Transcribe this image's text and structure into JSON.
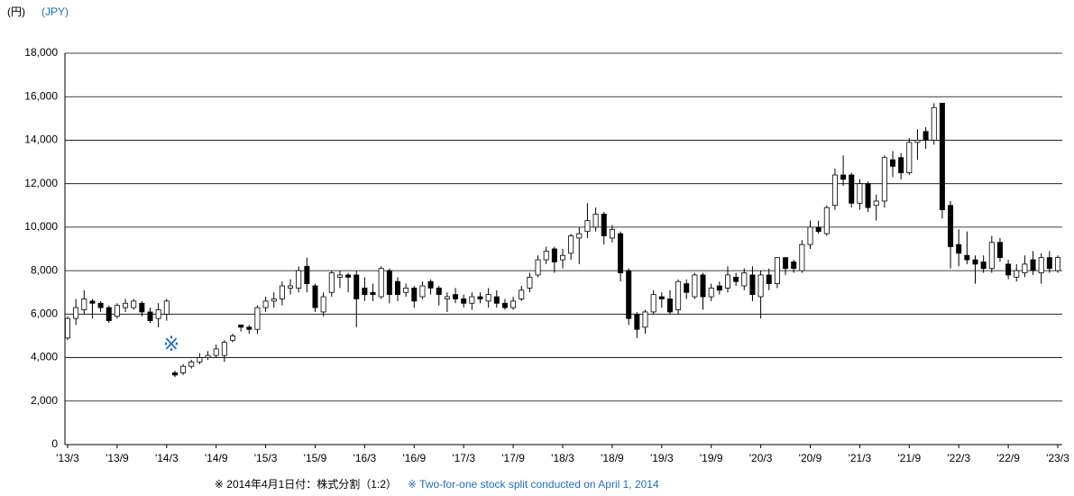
{
  "chart_data": {
    "type": "candlestick",
    "unit_label": "(円)",
    "unit_label_en": "(JPY)",
    "annotation": "※",
    "footnote": "※ 2014年4月1日付：株式分割（1:2）",
    "footnote_en": "※ Two-for-one stock split conducted on April 1, 2014",
    "categories": [
      "'13/3",
      null,
      null,
      null,
      null,
      null,
      "'13/9",
      null,
      null,
      null,
      null,
      null,
      "'14/3",
      null,
      null,
      null,
      null,
      null,
      "'14/9",
      null,
      null,
      null,
      null,
      null,
      "'15/3",
      null,
      null,
      null,
      null,
      null,
      "'15/9",
      null,
      null,
      null,
      null,
      null,
      "'16/3",
      null,
      null,
      null,
      null,
      null,
      "'16/9",
      null,
      null,
      null,
      null,
      null,
      "'17/3",
      null,
      null,
      null,
      null,
      null,
      "'17/9",
      null,
      null,
      null,
      null,
      null,
      "'18/3",
      null,
      null,
      null,
      null,
      null,
      "'18/9",
      null,
      null,
      null,
      null,
      null,
      "'19/3",
      null,
      null,
      null,
      null,
      null,
      "'19/9",
      null,
      null,
      null,
      null,
      null,
      "'20/3",
      null,
      null,
      null,
      null,
      null,
      "'20/9",
      null,
      null,
      null,
      null,
      null,
      "'21/3",
      null,
      null,
      null,
      null,
      null,
      "'21/9",
      null,
      null,
      null,
      null,
      null,
      "'22/3",
      null,
      null,
      null,
      null,
      null,
      "'22/9",
      null,
      null,
      null,
      null,
      null,
      "'23/3"
    ],
    "open": [
      4900,
      5800,
      6200,
      6600,
      6500,
      6300,
      5900,
      6300,
      6300,
      6500,
      6100,
      5800,
      6000,
      3300,
      3300,
      3600,
      3800,
      4000,
      4100,
      4100,
      4800,
      5500,
      5400,
      5300,
      6300,
      6600,
      6700,
      7200,
      7200,
      8200,
      7300,
      6100,
      7000,
      7700,
      7800,
      7800,
      7200,
      7000,
      6800,
      8000,
      7500,
      7000,
      7200,
      6800,
      7500,
      7200,
      6700,
      6900,
      6700,
      6500,
      6800,
      6600,
      6800,
      6500,
      6300,
      6700,
      7200,
      7800,
      8500,
      9000,
      8500,
      8800,
      9500,
      9800,
      10000,
      10600,
      9500,
      9700,
      8000,
      6000,
      5400,
      6100,
      6800,
      6700,
      6200,
      7400,
      6800,
      7800,
      6800,
      7300,
      7200,
      7700,
      7300,
      7800,
      6800,
      7800,
      7400,
      8600,
      8400,
      8000,
      9200,
      10000,
      9700,
      11000,
      12400,
      12400,
      11100,
      12000,
      11000,
      11200,
      13100,
      13200,
      12500,
      13900,
      14400,
      14000,
      15700,
      11000,
      9200,
      8700,
      8500,
      8400,
      8100,
      9300,
      8300,
      7700,
      7900,
      8500,
      7900,
      8600,
      8000
    ],
    "high": [
      5900,
      6700,
      7100,
      6700,
      6600,
      6400,
      6500,
      6700,
      6700,
      6600,
      6300,
      6500,
      6700,
      3400,
      3700,
      3900,
      4200,
      4300,
      4600,
      4800,
      5100,
      5500,
      5500,
      6400,
      6800,
      7000,
      7500,
      7600,
      8200,
      8600,
      7400,
      7000,
      8000,
      8000,
      7900,
      8000,
      7700,
      7400,
      8200,
      8100,
      7700,
      7400,
      7300,
      7500,
      7600,
      7300,
      7000,
      7200,
      6900,
      7000,
      7000,
      7200,
      7100,
      6700,
      6800,
      7300,
      7900,
      8700,
      9100,
      9100,
      9000,
      9700,
      10000,
      11100,
      10900,
      10700,
      10100,
      9800,
      8100,
      6100,
      6200,
      7100,
      7000,
      7100,
      7600,
      7600,
      7900,
      7900,
      7400,
      7500,
      8200,
      7900,
      8100,
      8200,
      8000,
      8100,
      8600,
      8600,
      8500,
      9400,
      10300,
      10300,
      11000,
      12700,
      13300,
      12500,
      12200,
      12100,
      11500,
      13300,
      13500,
      13400,
      14100,
      14500,
      14600,
      15700,
      15700,
      11200,
      9900,
      9800,
      8700,
      8700,
      9600,
      9500,
      8500,
      8300,
      8700,
      8900,
      8800,
      8900,
      8700
    ],
    "low": [
      4800,
      5500,
      6000,
      5800,
      6100,
      5600,
      5800,
      6100,
      6200,
      5900,
      5600,
      5400,
      5700,
      3100,
      3200,
      3500,
      3700,
      3900,
      4000,
      3800,
      4700,
      5200,
      5100,
      5100,
      6100,
      6300,
      6400,
      6900,
      7000,
      7000,
      6100,
      5900,
      6800,
      7200,
      7000,
      5400,
      6600,
      6600,
      6700,
      6500,
      6600,
      6800,
      6300,
      6700,
      6900,
      6400,
      6100,
      6500,
      6300,
      6200,
      6500,
      6300,
      6300,
      6200,
      6200,
      6600,
      7000,
      7700,
      8300,
      7900,
      8100,
      8500,
      8300,
      9500,
      9800,
      9200,
      9300,
      7500,
      5500,
      4900,
      5100,
      6000,
      6300,
      6000,
      6000,
      6700,
      6700,
      6200,
      6600,
      6900,
      7000,
      7300,
      7100,
      6600,
      5800,
      7100,
      7200,
      7800,
      7900,
      7900,
      9000,
      9700,
      9600,
      10800,
      11900,
      10900,
      10800,
      10700,
      10300,
      10900,
      12300,
      12200,
      12400,
      13100,
      13600,
      13800,
      10400,
      8100,
      8200,
      8300,
      7400,
      7900,
      7900,
      8400,
      7600,
      7500,
      7700,
      7800,
      7400,
      7900,
      7900
    ],
    "close": [
      5800,
      6300,
      6700,
      6500,
      6300,
      5700,
      6400,
      6500,
      6600,
      6100,
      5700,
      6200,
      6600,
      3200,
      3600,
      3800,
      4000,
      4100,
      4400,
      4700,
      5000,
      5400,
      5300,
      6300,
      6600,
      6700,
      7300,
      7300,
      8000,
      7400,
      6300,
      6800,
      7900,
      7800,
      7700,
      6700,
      6900,
      6900,
      8100,
      6900,
      6900,
      7200,
      6600,
      7300,
      7200,
      6900,
      6800,
      6700,
      6500,
      6800,
      6700,
      6900,
      6500,
      6300,
      6600,
      7100,
      7700,
      8500,
      8900,
      8400,
      8700,
      9600,
      9700,
      10300,
      10600,
      9600,
      9900,
      7900,
      5800,
      5300,
      6100,
      6900,
      6700,
      6100,
      7500,
      7000,
      7800,
      6800,
      7200,
      7100,
      7800,
      7500,
      7900,
      6900,
      7800,
      7400,
      8600,
      8100,
      8100,
      9200,
      10000,
      9800,
      10900,
      12400,
      12200,
      11100,
      12000,
      10900,
      11200,
      13200,
      12800,
      12500,
      13900,
      14000,
      14000,
      15500,
      10800,
      9100,
      8800,
      8500,
      8300,
      8100,
      9300,
      8600,
      7800,
      8000,
      8300,
      8000,
      8600,
      8100,
      8600
    ],
    "up_color": "#ffffff",
    "down_color": "#000000",
    "ylim": [
      0,
      18000
    ],
    "yticks": [
      0,
      {
        "value": 2000,
        "label": "2,000"
      },
      {
        "value": 4000,
        "label": "4,000"
      },
      {
        "value": 6000,
        "label": "6,000"
      },
      {
        "value": 8000,
        "label": "8,000"
      },
      {
        "value": 10000,
        "label": "10,000"
      },
      {
        "value": 12000,
        "label": "12,000"
      },
      {
        "value": 14000,
        "label": "14,000"
      },
      {
        "value": 16000,
        "label": "16,000"
      },
      {
        "value": 18000,
        "label": "18,000"
      }
    ],
    "grid": true
  }
}
